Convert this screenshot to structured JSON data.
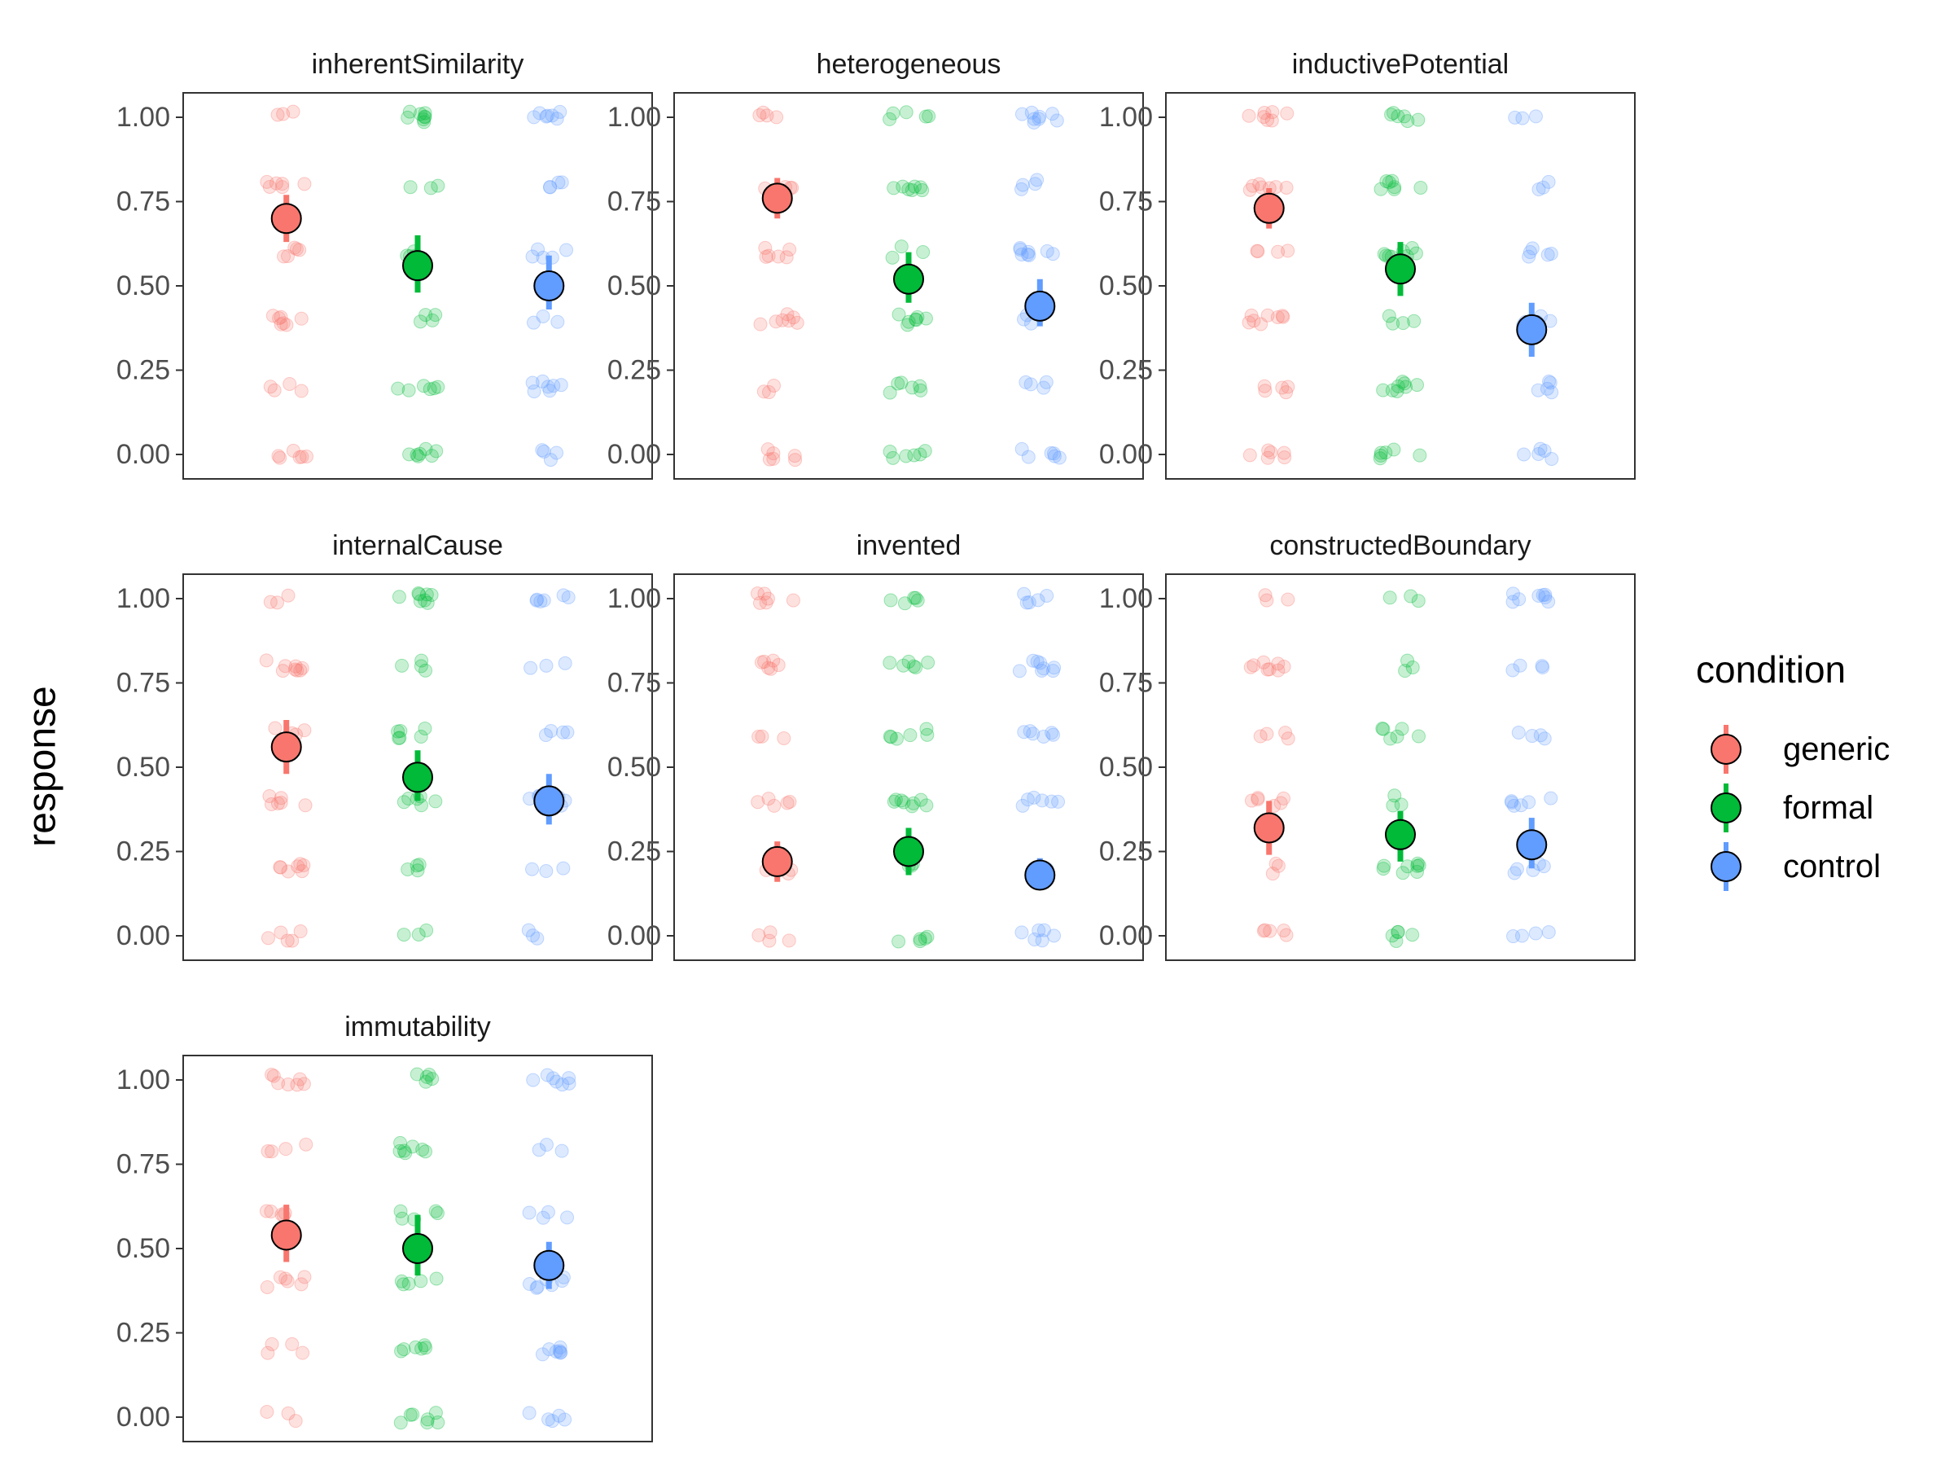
{
  "chart_data": {
    "type": "scatter",
    "ylabel": "response",
    "ylim": [
      0,
      1
    ],
    "yticks": [
      "0.00",
      "0.25",
      "0.50",
      "0.75",
      "1.00"
    ],
    "grid": false,
    "legend": {
      "title": "condition",
      "placement": "right",
      "items": [
        {
          "name": "generic",
          "color": "#F8766D"
        },
        {
          "name": "formal",
          "color": "#00BA38"
        },
        {
          "name": "control",
          "color": "#619CFF"
        }
      ]
    },
    "conditions": [
      "generic",
      "formal",
      "control"
    ],
    "panels": [
      {
        "title": "inherentSimilarity",
        "means": [
          0.7,
          0.56,
          0.5
        ],
        "ci": [
          [
            0.63,
            0.77
          ],
          [
            0.48,
            0.65
          ],
          [
            0.43,
            0.59
          ]
        ]
      },
      {
        "title": "heterogeneous",
        "means": [
          0.76,
          0.52,
          0.44
        ],
        "ci": [
          [
            0.7,
            0.82
          ],
          [
            0.45,
            0.6
          ],
          [
            0.38,
            0.52
          ]
        ]
      },
      {
        "title": "inductivePotential",
        "means": [
          0.73,
          0.55,
          0.37
        ],
        "ci": [
          [
            0.67,
            0.79
          ],
          [
            0.47,
            0.63
          ],
          [
            0.29,
            0.45
          ]
        ]
      },
      {
        "title": "internalCause",
        "means": [
          0.56,
          0.47,
          0.4
        ],
        "ci": [
          [
            0.48,
            0.64
          ],
          [
            0.4,
            0.55
          ],
          [
            0.33,
            0.48
          ]
        ]
      },
      {
        "title": "invented",
        "means": [
          0.22,
          0.25,
          0.18
        ],
        "ci": [
          [
            0.16,
            0.28
          ],
          [
            0.18,
            0.32
          ],
          [
            0.14,
            0.23
          ]
        ]
      },
      {
        "title": "constructedBoundary",
        "means": [
          0.32,
          0.3,
          0.27
        ],
        "ci": [
          [
            0.24,
            0.4
          ],
          [
            0.22,
            0.37
          ],
          [
            0.2,
            0.35
          ]
        ]
      },
      {
        "title": "immutability",
        "means": [
          0.54,
          0.5,
          0.45
        ],
        "ci": [
          [
            0.46,
            0.63
          ],
          [
            0.42,
            0.6
          ],
          [
            0.38,
            0.52
          ]
        ]
      }
    ],
    "raw_response_levels": [
      0,
      0.2,
      0.4,
      0.6,
      0.8,
      1.0
    ]
  }
}
